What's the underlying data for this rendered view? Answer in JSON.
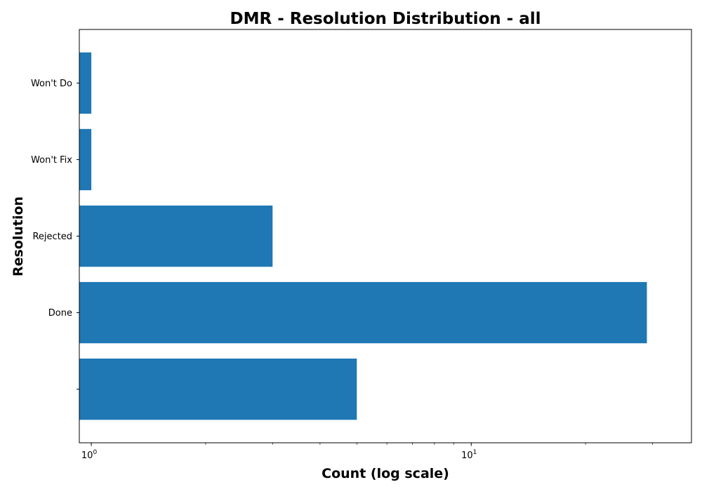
{
  "chart_data": {
    "type": "bar",
    "orientation": "horizontal",
    "title": "DMR - Resolution Distribution - all",
    "xlabel": "Count (log scale)",
    "ylabel": "Resolution",
    "x_scale": "log",
    "xlim": [
      0.93,
      38
    ],
    "categories": [
      "",
      "Done",
      "Rejected",
      "Won't Fix",
      "Won't Do"
    ],
    "values": [
      5,
      29,
      3,
      1,
      1
    ],
    "x_tick_labels": [
      {
        "value": 1,
        "base": "10",
        "exponent": "0"
      },
      {
        "value": 10,
        "base": "10",
        "exponent": "1"
      }
    ],
    "bar_color": "#1f77b4",
    "grid": false,
    "legend": "none"
  }
}
